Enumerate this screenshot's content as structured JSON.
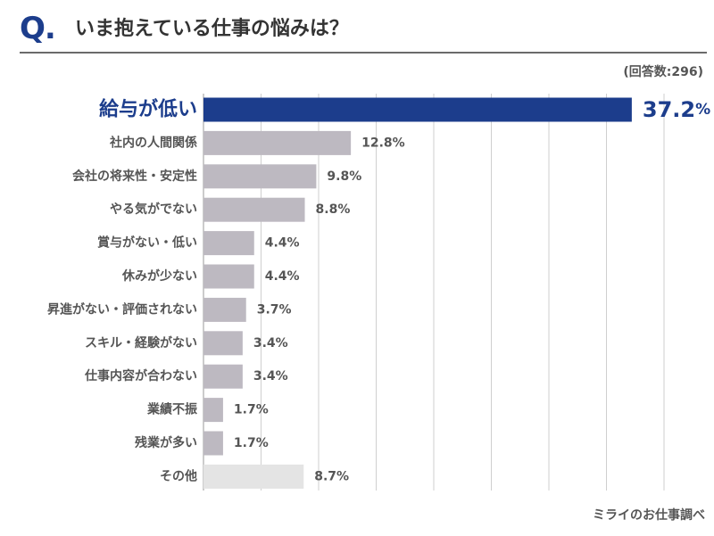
{
  "header": {
    "q_mark": "Q.",
    "title": "いま抱えている仕事の悩みは？",
    "respondents": "(回答数:296)",
    "source": "ミライのお仕事調べ"
  },
  "colors": {
    "highlight": "#1c3d8c",
    "bar": "#bdb9c1",
    "other": "#e4e4e4",
    "grid": "#cfcfcf",
    "text": "#555555"
  },
  "chart_data": {
    "type": "bar",
    "orientation": "horizontal",
    "title": "いま抱えている仕事の悩みは？",
    "unit": "%",
    "xlim": [
      0,
      45
    ],
    "grid_step": 5,
    "categories": [
      "給与が低い",
      "社内の人間関係",
      "会社の将来性・安定性",
      "やる気がでない",
      "賞与がない・低い",
      "休みが少ない",
      "昇進がない・評価されない",
      "スキル・経験がない",
      "仕事内容が合わない",
      "業績不振",
      "残業が多い",
      "その他"
    ],
    "values": [
      37.2,
      12.8,
      9.8,
      8.8,
      4.4,
      4.4,
      3.7,
      3.4,
      3.4,
      1.7,
      1.7,
      8.7
    ],
    "value_labels": [
      "37.2",
      "12.8%",
      "9.8%",
      "8.8%",
      "4.4%",
      "4.4%",
      "3.7%",
      "3.4%",
      "3.4%",
      "1.7%",
      "1.7%",
      "8.7%"
    ],
    "highlight_index": 0,
    "highlight_unit": "%",
    "other_index": 11
  }
}
